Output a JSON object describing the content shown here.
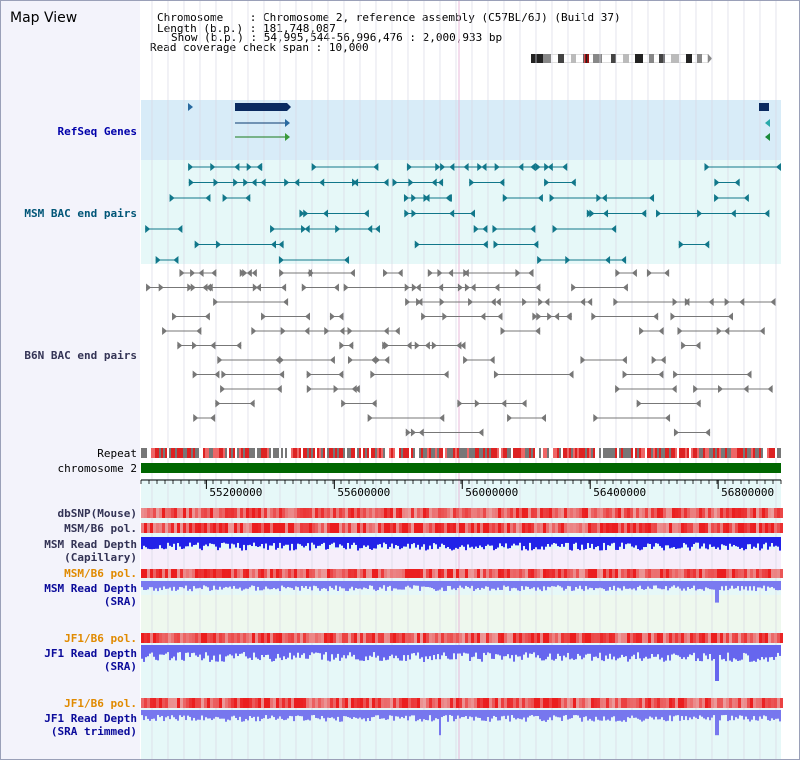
{
  "view": {
    "title": "Map View"
  },
  "info": {
    "chromosome_key": "Chromosome",
    "chromosome_value": "Chromosome 2, reference assembly (C57BL/6J) (Build 37)",
    "length_key": "Length (b.p.)",
    "length_value": "181,748,087",
    "show_key": "Show (b.p.)",
    "show_value": "54,995,544-56,996,476 : 2,000,933 bp",
    "coverage_key": "Read coverage check span",
    "coverage_value": "10,000"
  },
  "tracks": {
    "refseq": "RefSeq Genes",
    "msm_bac": "MSM BAC end pairs",
    "b6n_bac": "B6N BAC end pairs",
    "repeat": "Repeat",
    "chromosome": "chromosome 2",
    "dbsnp": "dbSNP(Mouse)",
    "msm_b6_pol_1": "MSM/B6 pol.",
    "msm_depth_cap_1": "MSM Read Depth",
    "msm_depth_cap_2": "(Capillary)",
    "msm_b6_pol_2": "MSM/B6 pol.",
    "msm_depth_sra_1": "MSM Read Depth",
    "msm_depth_sra_2": "(SRA)",
    "jf1_pol_1": "JF1/B6 pol.",
    "jf1_depth_sra_1": "JF1 Read Depth",
    "jf1_depth_sra_2": "(SRA)",
    "jf1_pol_2": "JF1/B6 pol.",
    "jf1_depth_trim_1": "JF1 Read Depth",
    "jf1_depth_trim_2": "(SRA trimmed)"
  },
  "axis": {
    "ticks": [
      {
        "pos": 55200000,
        "label": "55200000"
      },
      {
        "pos": 55600000,
        "label": "55600000"
      },
      {
        "pos": 56000000,
        "label": "56000000"
      },
      {
        "pos": 56400000,
        "label": "56400000"
      },
      {
        "pos": 56800000,
        "label": "56800000"
      }
    ],
    "start": 54995544,
    "end": 56996476
  },
  "colors": {
    "refseq_bg": "#d8ecf8",
    "msm_bg": "#e6f8f8",
    "b6n_bg": "#ffffff",
    "depth_blue": "#2222e8",
    "depth_light": "#7a7af0",
    "pol_red": "#e83030",
    "chromosome_green": "#006600",
    "repeat_red": "#dd2222",
    "teal": "#11778a",
    "gray": "#777777"
  }
}
